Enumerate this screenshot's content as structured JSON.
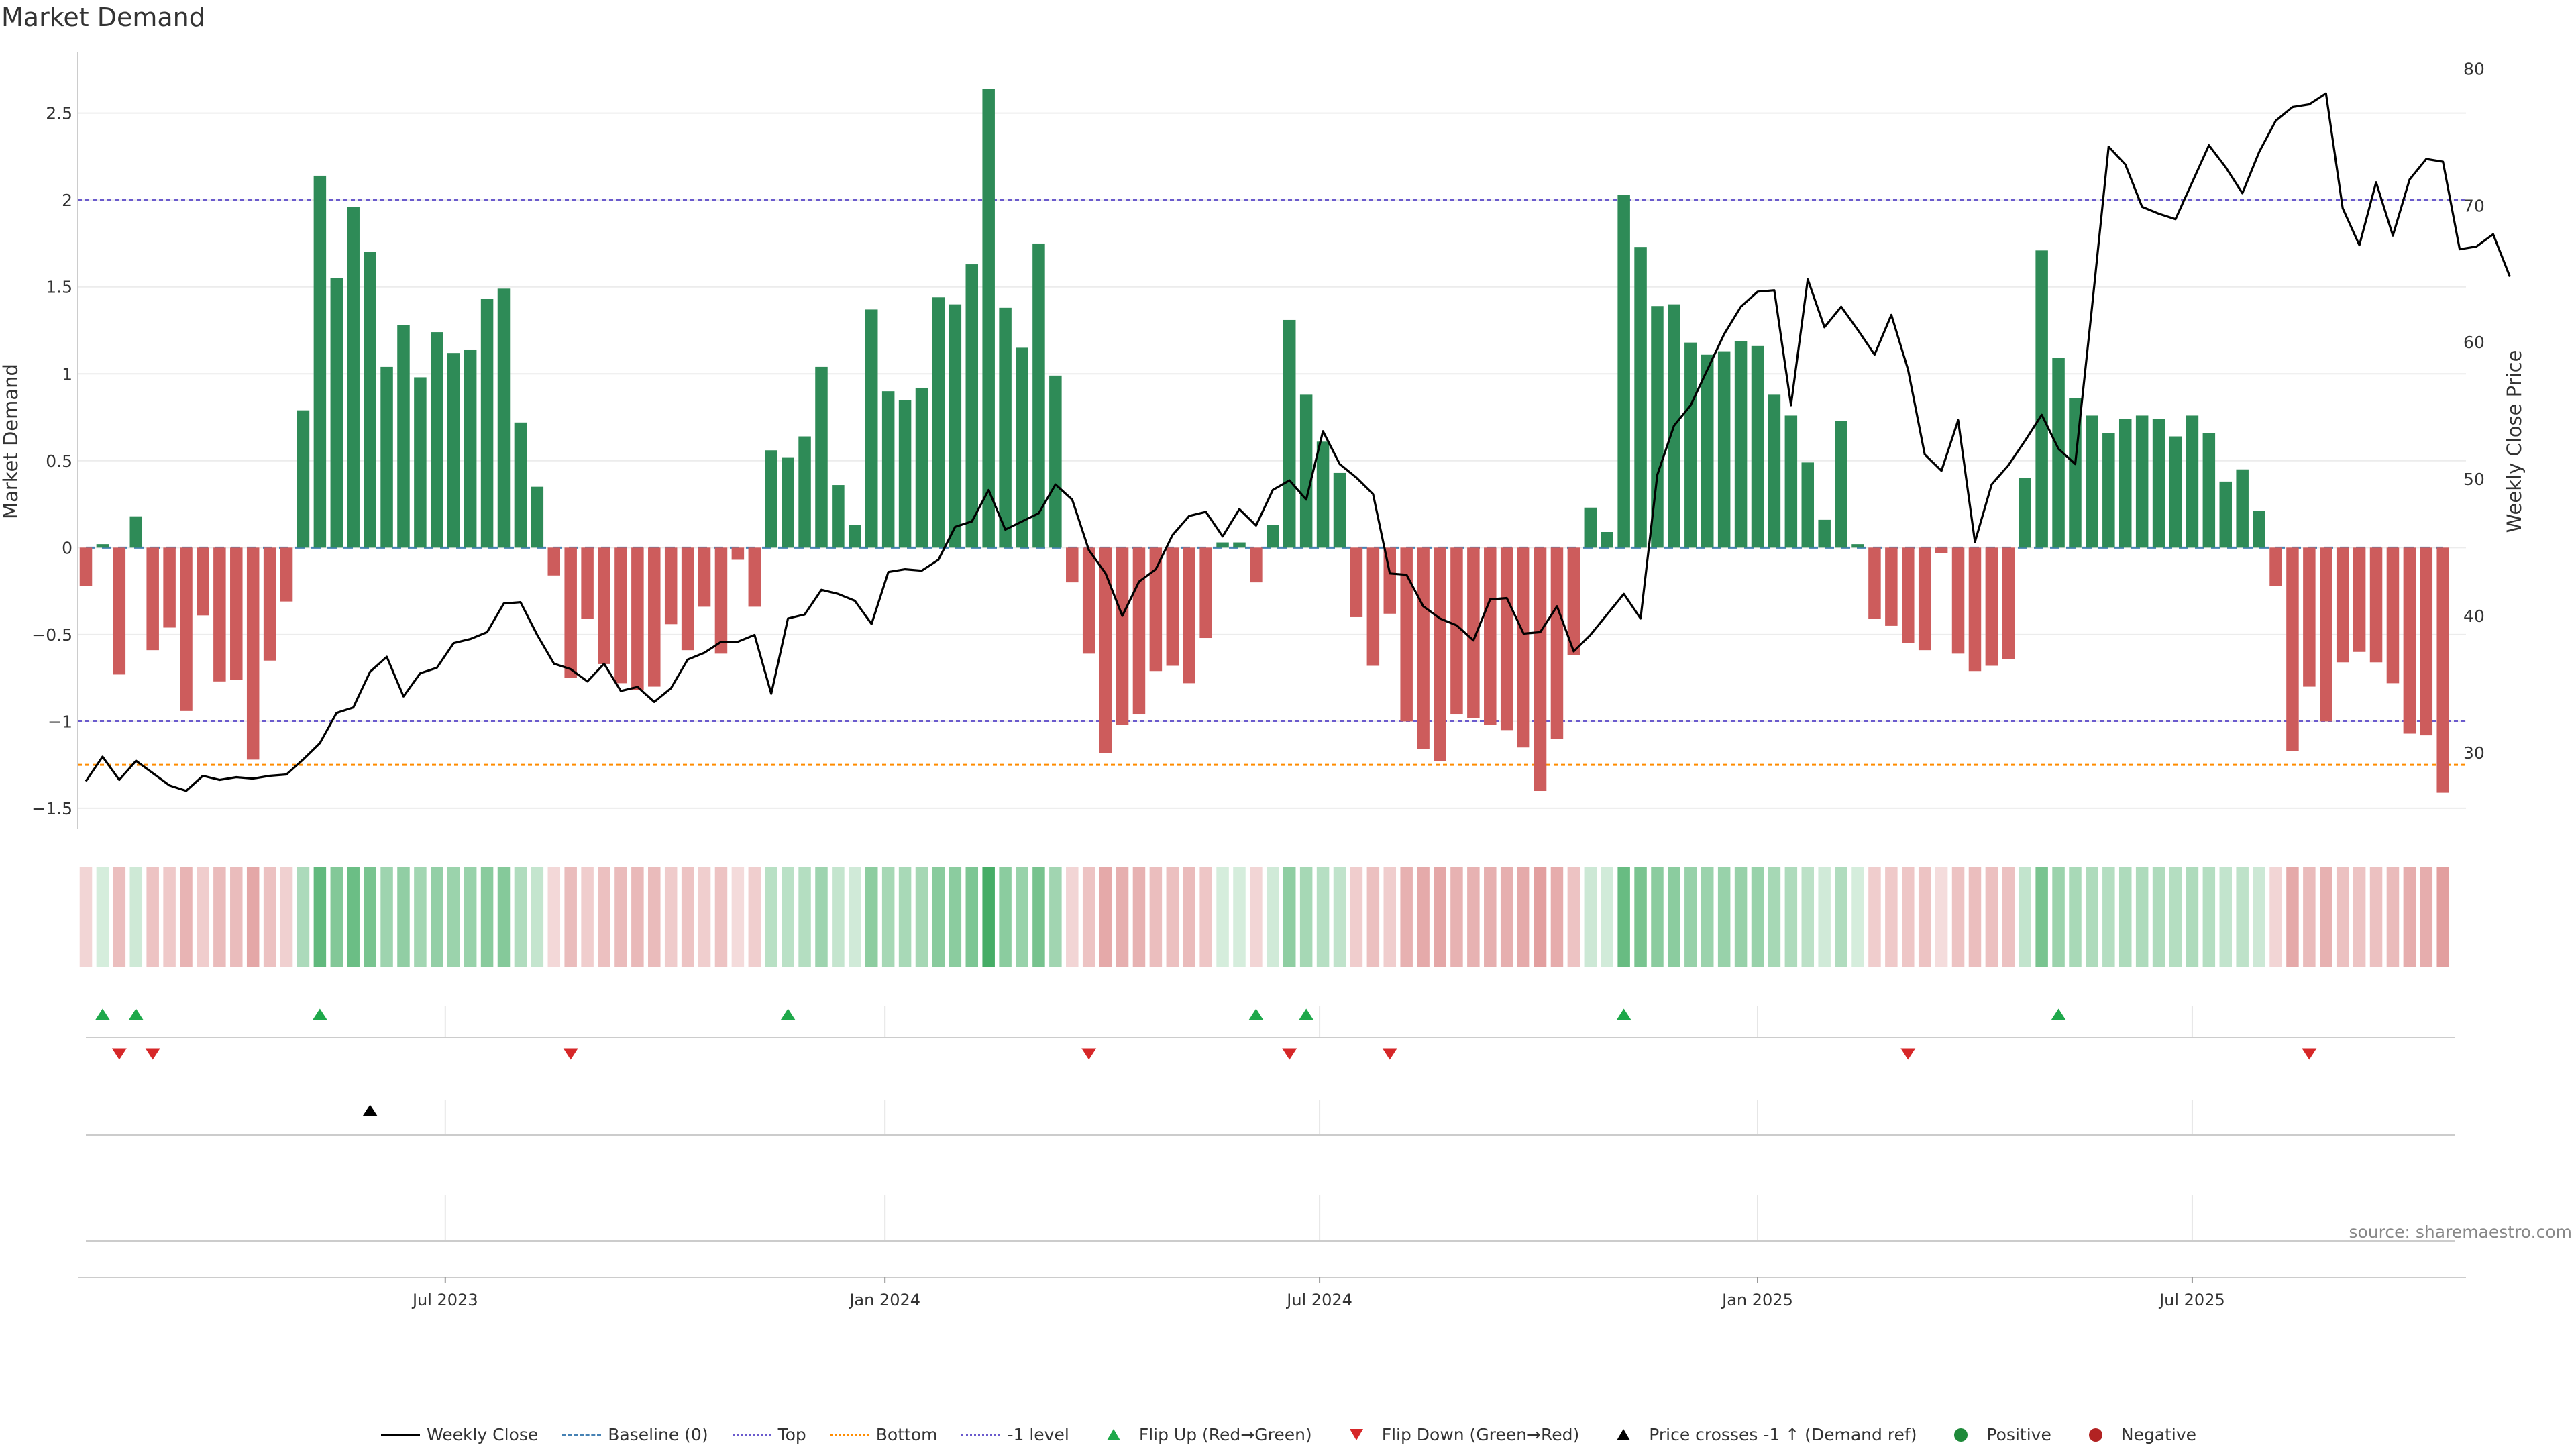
{
  "title": "Market Demand",
  "source": "source: sharemaestro.com",
  "colors": {
    "positive": "#2e8b57",
    "negative": "#cd5c5c",
    "weekly_close": "#000000",
    "baseline": "#4682b4",
    "top": "#6a5acd",
    "bottom": "#ff8c00",
    "minus1": "#6a5acd",
    "flip_up": "#1ea84a",
    "flip_down": "#d62728",
    "cross": "#000000",
    "positive_dot": "#1f8a3a",
    "negative_dot": "#b22222"
  },
  "legend": [
    {
      "label": "Weekly Close",
      "symbol": "line",
      "style": "solid",
      "color_key": "weekly_close"
    },
    {
      "label": "Baseline (0)",
      "symbol": "line",
      "style": "dashed",
      "color_key": "baseline"
    },
    {
      "label": "Top",
      "symbol": "line",
      "style": "dotted",
      "color_key": "top"
    },
    {
      "label": "Bottom",
      "symbol": "line",
      "style": "dotted",
      "color_key": "bottom"
    },
    {
      "label": "-1 level",
      "symbol": "line",
      "style": "dotted",
      "color_key": "minus1"
    },
    {
      "label": "Flip Up (Red→Green)",
      "symbol": "triangle-up",
      "color_key": "flip_up"
    },
    {
      "label": "Flip Down (Green→Red)",
      "symbol": "triangle-down",
      "color_key": "flip_down"
    },
    {
      "label": "Price crosses -1 ↑ (Demand ref)",
      "symbol": "triangle-up",
      "color_key": "cross"
    },
    {
      "label": "Positive",
      "symbol": "dot",
      "color_key": "positive_dot"
    },
    {
      "label": "Negative",
      "symbol": "dot",
      "color_key": "negative_dot"
    }
  ],
  "chart_data": {
    "type": "bar",
    "title": "Market Demand",
    "ylabel": "Market Demand",
    "y2label": "Weekly Close Price",
    "ylim": [
      -1.62,
      2.85
    ],
    "y2lim": [
      24.4,
      81.2
    ],
    "yticks": [
      "2.5",
      "2",
      "1.5",
      "1",
      "0.5",
      "0",
      "−0.5",
      "−1",
      "−1.5"
    ],
    "ytick_values": [
      2.5,
      2,
      1.5,
      1,
      0.5,
      0,
      -0.5,
      -1,
      -1.5
    ],
    "y2ticks": [
      "80",
      "70",
      "60",
      "50",
      "40",
      "30"
    ],
    "y2tick_values": [
      80,
      70,
      60,
      50,
      40,
      30
    ],
    "xticks": [
      "Jul 2023",
      "Jan 2024",
      "Jul 2024",
      "Jan 2025",
      "Jul 2025"
    ],
    "xtick_weeks": [
      21.5,
      47.8,
      73.8,
      100,
      126
    ],
    "reference_lines": {
      "top": 2.0,
      "minus1": -1.0,
      "bottom": -1.25,
      "baseline": 0
    },
    "market_demand": [
      -0.22,
      0.02,
      -0.73,
      0.18,
      -0.59,
      -0.46,
      -0.94,
      -0.39,
      -0.77,
      -0.76,
      -1.22,
      -0.65,
      -0.31,
      0.79,
      2.14,
      1.55,
      1.96,
      1.7,
      1.04,
      1.28,
      0.98,
      1.24,
      1.12,
      1.14,
      1.43,
      1.49,
      0.72,
      0.35,
      -0.16,
      -0.75,
      -0.41,
      -0.67,
      -0.78,
      -0.82,
      -0.8,
      -0.44,
      -0.59,
      -0.34,
      -0.61,
      -0.07,
      -0.34,
      0.56,
      0.52,
      0.64,
      1.04,
      0.36,
      0.13,
      1.37,
      0.9,
      0.85,
      0.92,
      1.44,
      1.4,
      1.63,
      2.64,
      1.38,
      1.15,
      1.75,
      0.99,
      -0.2,
      -0.61,
      -1.18,
      -1.02,
      -0.96,
      -0.71,
      -0.68,
      -0.78,
      -0.52,
      0.03,
      0.03,
      -0.2,
      0.13,
      1.31,
      0.88,
      0.61,
      0.43,
      -0.4,
      -0.68,
      -0.38,
      -1.0,
      -1.16,
      -1.23,
      -0.96,
      -0.98,
      -1.02,
      -1.05,
      -1.15,
      -1.4,
      -1.1,
      -0.62,
      0.23,
      0.09,
      2.03,
      1.73,
      1.39,
      1.4,
      1.18,
      1.11,
      1.13,
      1.19,
      1.16,
      0.88,
      0.76,
      0.49,
      0.16,
      0.73,
      0.02,
      -0.41,
      -0.45,
      -0.55,
      -0.59,
      -0.03,
      -0.61,
      -0.71,
      -0.68,
      -0.64,
      0.4,
      1.71,
      1.09,
      0.86,
      0.76,
      0.66,
      0.74,
      0.76,
      0.74,
      0.64,
      0.76,
      0.66,
      0.38,
      0.45,
      0.21,
      -0.22,
      -1.17,
      -0.8,
      -1.0,
      -0.66,
      -0.6,
      -0.66,
      -0.78,
      -1.07,
      -1.08,
      -1.41
    ],
    "weekly_close": [
      27.9,
      29.7,
      28.0,
      29.4,
      28.5,
      27.6,
      27.2,
      28.3,
      28.0,
      28.2,
      28.1,
      28.3,
      28.4,
      29.5,
      30.7,
      32.9,
      33.3,
      35.9,
      37.0,
      34.1,
      35.8,
      36.2,
      38.0,
      38.3,
      38.8,
      40.9,
      41.0,
      38.6,
      36.5,
      36.1,
      35.2,
      36.5,
      34.5,
      34.8,
      33.7,
      34.7,
      36.8,
      37.3,
      38.1,
      38.1,
      38.6,
      34.3,
      39.8,
      40.1,
      41.9,
      41.6,
      41.1,
      39.4,
      43.2,
      43.4,
      43.3,
      44.1,
      46.5,
      46.9,
      49.2,
      46.3,
      46.9,
      47.5,
      49.6,
      48.5,
      44.8,
      43.1,
      40.0,
      42.5,
      43.4,
      45.9,
      47.3,
      47.6,
      45.8,
      47.8,
      46.6,
      49.2,
      49.9,
      48.5,
      53.5,
      51.1,
      50.1,
      48.9,
      43.1,
      43.0,
      40.7,
      39.8,
      39.3,
      38.2,
      41.2,
      41.3,
      38.7,
      38.8,
      40.7,
      37.4,
      38.6,
      40.1,
      41.6,
      39.8,
      50.3,
      53.9,
      55.4,
      58.0,
      60.6,
      62.6,
      63.7,
      63.8,
      55.4,
      64.6,
      61.1,
      62.6,
      60.9,
      59.1,
      62.0,
      58.0,
      51.8,
      50.6,
      54.3,
      45.4,
      49.6,
      51.0,
      52.8,
      54.7,
      52.2,
      51.1,
      62.5,
      74.3,
      73.0,
      69.9,
      69.4,
      69.0,
      71.7,
      74.4,
      72.8,
      70.9,
      73.9,
      76.2,
      77.2,
      77.4,
      78.2,
      69.8,
      67.1,
      71.7,
      67.8,
      71.9,
      73.4,
      73.2,
      66.8,
      67.0,
      67.9,
      64.8
    ],
    "flip_up_weeks": [
      1,
      3,
      14,
      42,
      70,
      73,
      92,
      118
    ],
    "flip_down_weeks": [
      2,
      4,
      29,
      60,
      72,
      78,
      109,
      133
    ],
    "cross_up_weeks": [
      17
    ]
  }
}
